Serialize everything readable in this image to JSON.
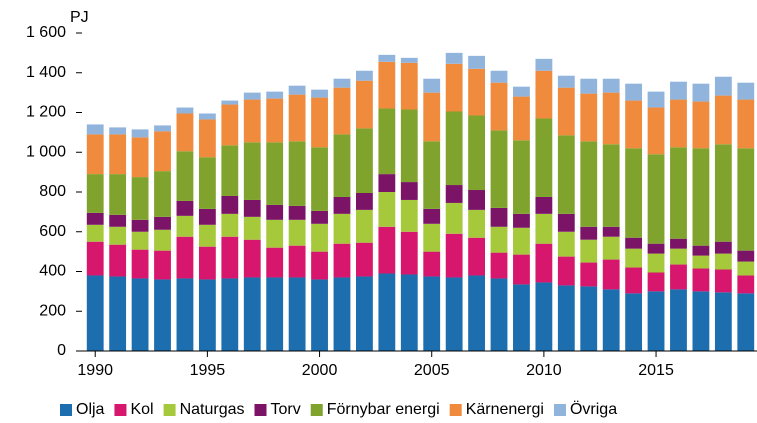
{
  "chart_data": {
    "type": "stacked-bar",
    "y_label": "PJ",
    "x": [
      1990,
      1991,
      1992,
      1993,
      1994,
      1995,
      1996,
      1997,
      1998,
      1999,
      2000,
      2001,
      2002,
      2003,
      2004,
      2005,
      2006,
      2007,
      2008,
      2009,
      2010,
      2011,
      2012,
      2013,
      2014,
      2015,
      2016,
      2017,
      2018,
      2019
    ],
    "xlim": [
      1989.5,
      2019.5
    ],
    "xticks": [
      1990,
      1995,
      2000,
      2005,
      2010,
      2015
    ],
    "ylim": [
      0,
      1600
    ],
    "yticks": [
      0,
      200,
      400,
      600,
      800,
      {
        "value": 1000,
        "label": "1 000"
      },
      {
        "value": 1200,
        "label": "1 200"
      },
      {
        "value": 1400,
        "label": "1 400"
      },
      {
        "value": 1600,
        "label": "1 600"
      }
    ],
    "grid": false,
    "legend": "bottom",
    "series": [
      {
        "name": "Olja",
        "color": "#1c6eae",
        "values": [
          380,
          375,
          365,
          360,
          365,
          360,
          365,
          370,
          370,
          370,
          360,
          370,
          375,
          390,
          385,
          375,
          370,
          380,
          365,
          335,
          345,
          330,
          325,
          310,
          290,
          300,
          310,
          300,
          295,
          290
        ]
      },
      {
        "name": "Kol",
        "color": "#d7176d",
        "values": [
          170,
          160,
          145,
          145,
          210,
          165,
          210,
          190,
          150,
          160,
          140,
          170,
          170,
          235,
          215,
          125,
          220,
          190,
          130,
          150,
          195,
          145,
          120,
          150,
          130,
          95,
          125,
          115,
          115,
          90
        ]
      },
      {
        "name": "Naturgas",
        "color": "#a6c93c",
        "values": [
          85,
          90,
          90,
          105,
          105,
          110,
          115,
          115,
          140,
          130,
          140,
          150,
          165,
          175,
          160,
          140,
          155,
          140,
          130,
          135,
          150,
          125,
          115,
          115,
          95,
          95,
          80,
          65,
          80,
          70
        ]
      },
      {
        "name": "Torv",
        "color": "#7b1467",
        "values": [
          60,
          60,
          60,
          65,
          75,
          80,
          90,
          85,
          75,
          70,
          65,
          85,
          85,
          90,
          90,
          75,
          90,
          100,
          95,
          70,
          85,
          90,
          65,
          50,
          55,
          50,
          50,
          50,
          60,
          55
        ]
      },
      {
        "name": "Förnybar energi",
        "color": "#7fa32c",
        "values": [
          195,
          205,
          215,
          230,
          250,
          260,
          255,
          290,
          315,
          325,
          320,
          315,
          325,
          330,
          365,
          340,
          370,
          375,
          390,
          370,
          395,
          395,
          430,
          415,
          450,
          450,
          460,
          490,
          490,
          515
        ]
      },
      {
        "name": "Kärnenergi",
        "color": "#f08a3c",
        "values": [
          200,
          200,
          200,
          200,
          190,
          190,
          205,
          215,
          220,
          235,
          250,
          235,
          240,
          235,
          235,
          245,
          240,
          235,
          240,
          220,
          240,
          240,
          240,
          260,
          240,
          235,
          240,
          235,
          245,
          245
        ]
      },
      {
        "name": "Övriga",
        "color": "#91b4dc",
        "values": [
          50,
          35,
          40,
          30,
          30,
          30,
          20,
          35,
          35,
          45,
          40,
          45,
          50,
          35,
          25,
          70,
          55,
          65,
          60,
          50,
          60,
          60,
          75,
          70,
          85,
          80,
          90,
          90,
          95,
          85
        ]
      }
    ]
  }
}
